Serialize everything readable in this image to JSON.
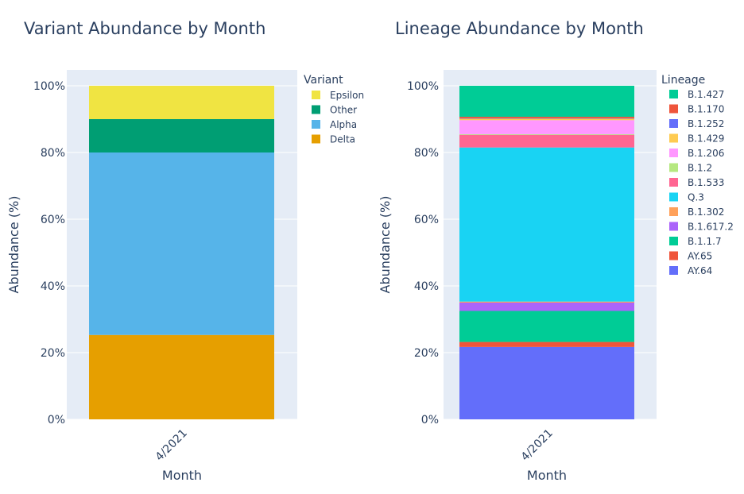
{
  "chart_data": [
    {
      "type": "bar",
      "stacked": true,
      "title": "Variant Abundance by Month",
      "xlabel": "Month",
      "ylabel": "Abundance (%)",
      "categories": [
        "4/2021"
      ],
      "ylim": [
        0,
        100
      ],
      "yticks": [
        "0%",
        "20%",
        "40%",
        "60%",
        "80%",
        "100%"
      ],
      "legend_title": "Variant",
      "legend_placement": "right",
      "series": [
        {
          "name": "Delta",
          "values": [
            25.3
          ],
          "color": "#E69F00"
        },
        {
          "name": "Alpha",
          "values": [
            54.7
          ],
          "color": "#56B4E9"
        },
        {
          "name": "Other",
          "values": [
            10.0
          ],
          "color": "#009E73"
        },
        {
          "name": "Epsilon",
          "values": [
            10.0
          ],
          "color": "#F0E442"
        }
      ],
      "legend_order": [
        "Epsilon",
        "Other",
        "Alpha",
        "Delta"
      ]
    },
    {
      "type": "bar",
      "stacked": true,
      "title": "Lineage Abundance by Month",
      "xlabel": "Month",
      "ylabel": "Abundance (%)",
      "categories": [
        "4/2021"
      ],
      "ylim": [
        0,
        100
      ],
      "yticks": [
        "0%",
        "20%",
        "40%",
        "60%",
        "80%",
        "100%"
      ],
      "legend_title": "Lineage",
      "legend_placement": "right",
      "series": [
        {
          "name": "AY.64",
          "values": [
            21.7
          ],
          "color": "#636EFA"
        },
        {
          "name": "AY.65",
          "values": [
            1.5
          ],
          "color": "#EF553B"
        },
        {
          "name": "B.1.1.7",
          "values": [
            9.3
          ],
          "color": "#00CC96"
        },
        {
          "name": "B.1.617.2",
          "values": [
            2.5
          ],
          "color": "#AB63FA"
        },
        {
          "name": "B.1.302",
          "values": [
            0.3
          ],
          "color": "#FFA15A"
        },
        {
          "name": "Q.3",
          "values": [
            46.2
          ],
          "color": "#19D3F3"
        },
        {
          "name": "B.1.533",
          "values": [
            3.8
          ],
          "color": "#FF6692"
        },
        {
          "name": "B.1.2",
          "values": [
            0.2
          ],
          "color": "#B6E880"
        },
        {
          "name": "B.1.206",
          "values": [
            4.2
          ],
          "color": "#FF97FF"
        },
        {
          "name": "B.1.429",
          "values": [
            0.4
          ],
          "color": "#FECB52"
        },
        {
          "name": "B.1.252",
          "values": [
            0.1
          ],
          "color": "#636EFA"
        },
        {
          "name": "B.1.170",
          "values": [
            0.5
          ],
          "color": "#EF553B"
        },
        {
          "name": "B.1.427",
          "values": [
            9.3
          ],
          "color": "#00CC96"
        }
      ],
      "legend_order": [
        "B.1.427",
        "B.1.170",
        "B.1.252",
        "B.1.429",
        "B.1.206",
        "B.1.2",
        "B.1.533",
        "Q.3",
        "B.1.302",
        "B.1.617.2",
        "B.1.1.7",
        "AY.65",
        "AY.64"
      ]
    }
  ]
}
